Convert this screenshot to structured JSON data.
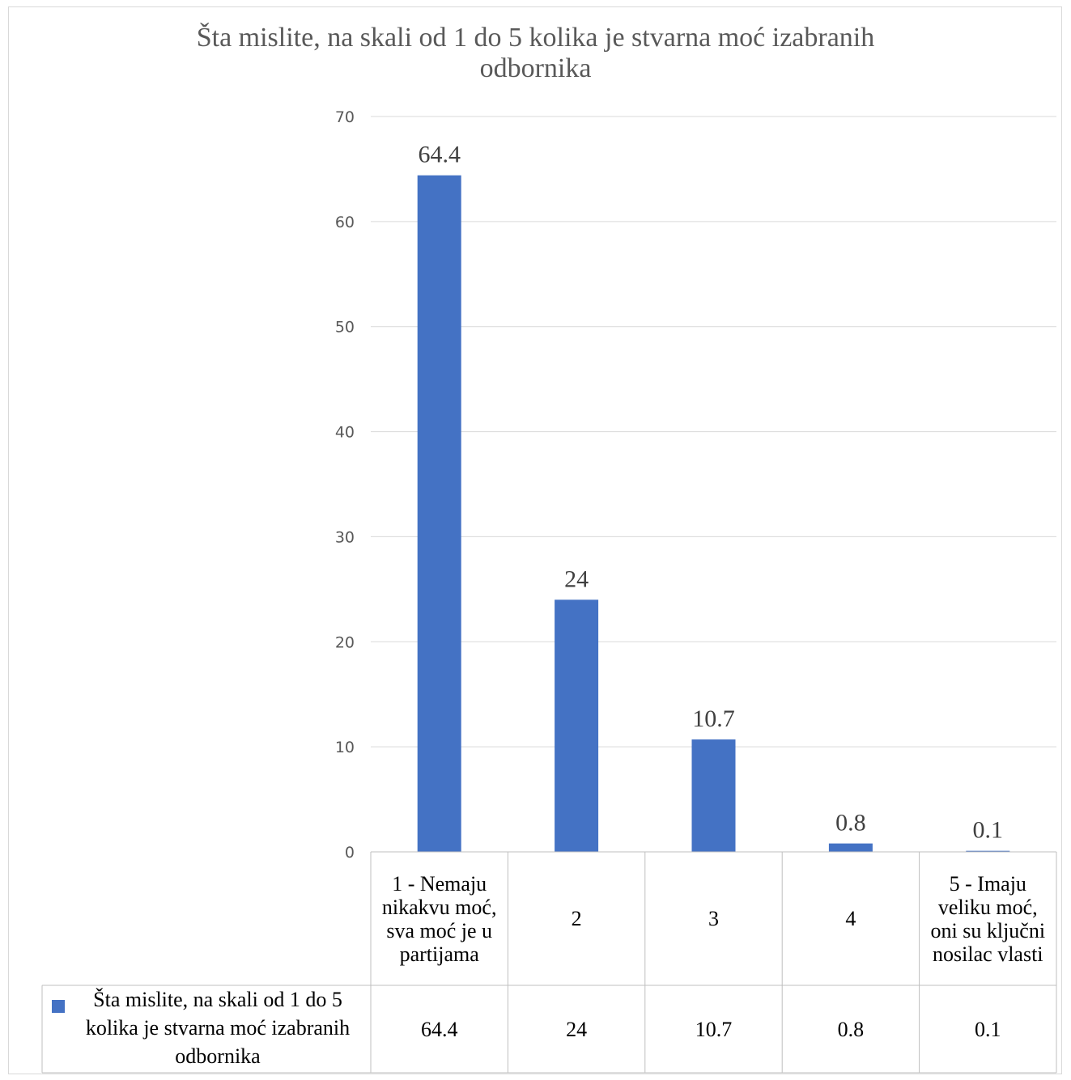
{
  "chart_data": {
    "type": "bar",
    "title_lines": [
      "Šta mislite, na skali od 1 do 5 kolika je stvarna moć izabranih",
      "odbornika"
    ],
    "categories": [
      "1 - Nemaju nikakvu moć, sva moć je u partijama",
      "2",
      "3",
      "4",
      "5 - Imaju veliku moć, oni su ključni nosilac vlasti"
    ],
    "series": [
      {
        "name": "Šta mislite, na skali od 1 do 5 kolika je stvarna moć izabranih odbornika",
        "values": [
          64.4,
          24,
          10.7,
          0.8,
          0.1
        ],
        "labels": [
          "64.4",
          "24",
          "10.7",
          "0.8",
          "0.1"
        ],
        "color": "#4472c4"
      }
    ],
    "ylim": [
      0,
      70
    ],
    "yticks": [
      0,
      10,
      20,
      30,
      40,
      50,
      60,
      70
    ],
    "grid": true,
    "data_table": true,
    "legend_position": "data-table-left"
  }
}
